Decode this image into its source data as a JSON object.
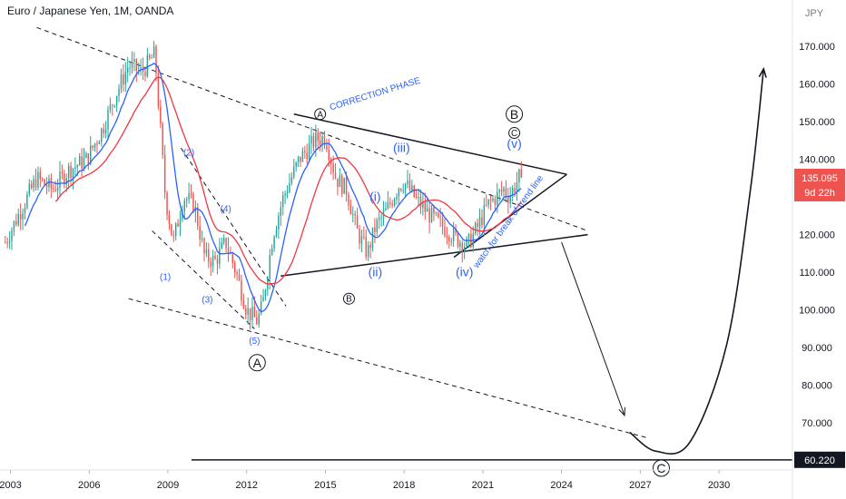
{
  "header": {
    "title": "Euro / Japanese Yen, 1M, OANDA"
  },
  "colors": {
    "up": "#26a69a",
    "down": "#ef5350",
    "ma_fast": "#2962ff",
    "ma_slow": "#f23645",
    "wave_label": "#2962ff",
    "line": "#131722",
    "price_badge": "#ef5350"
  },
  "chart_data": {
    "type": "candlestick",
    "title": "Euro / Japanese Yen, 1M, OANDA",
    "currency": "JPY",
    "ylim": [
      58,
      177
    ],
    "xlim": [
      2002.6,
      2032.8
    ],
    "grid": false,
    "y_ticks": [
      "170.000",
      "160.000",
      "150.000",
      "140.000",
      "130.000",
      "120.000",
      "110.000",
      "100.000",
      "90.000",
      "80.000",
      "70.000"
    ],
    "x_ticks": [
      "2003",
      "2006",
      "2009",
      "2012",
      "2015",
      "2018",
      "2021",
      "2024",
      "2027",
      "2030"
    ],
    "price_anchors": {
      "t": [
        2002.8,
        2003.5,
        2004.0,
        2004.6,
        2005.2,
        2005.9,
        2006.5,
        2007.0,
        2007.5,
        2008.0,
        2008.5,
        2008.9,
        2009.2,
        2009.6,
        2010.0,
        2010.4,
        2010.8,
        2011.2,
        2011.6,
        2012.0,
        2012.4,
        2012.6,
        2013.0,
        2013.4,
        2014.0,
        2014.6,
        2015.0,
        2015.4,
        2015.8,
        2016.2,
        2016.6,
        2016.9,
        2017.3,
        2017.8,
        2018.0,
        2018.5,
        2019.0,
        2019.5,
        2020.0,
        2020.4,
        2020.8,
        2021.2,
        2021.5,
        2021.8,
        2022.0,
        2022.3,
        2022.5
      ],
      "v": [
        118,
        128,
        135,
        132,
        137,
        140,
        148,
        157,
        165,
        163,
        168,
        130,
        118,
        130,
        128,
        114,
        113,
        118,
        110,
        100,
        97,
        101,
        120,
        130,
        140,
        145,
        146,
        135,
        132,
        121,
        115,
        122,
        126,
        133,
        134,
        129,
        125,
        122,
        119,
        117,
        122,
        128,
        130,
        132,
        130,
        134,
        137
      ]
    },
    "moving_averages": [
      {
        "name": "",
        "color": "#2962ff",
        "window_months": 10
      },
      {
        "name": "",
        "color": "#f23645",
        "window_months": 24
      }
    ],
    "price_labels": {
      "last_price": "135.095",
      "countdown": "9d 22h",
      "target": "60.220"
    },
    "drawings": {
      "lines": [
        {
          "name": "upper-dashed-channel",
          "style": "dashed",
          "from": [
            2004.0,
            175
          ],
          "to": [
            2025.0,
            121
          ]
        },
        {
          "name": "lower-dashed-channel",
          "style": "dashed",
          "from": [
            2007.5,
            103
          ],
          "to": [
            2027.3,
            66
          ]
        },
        {
          "name": "triangle-upper-line",
          "style": "solid",
          "from": [
            2013.8,
            152
          ],
          "to": [
            2024.2,
            136
          ]
        },
        {
          "name": "triangle-lower-line",
          "style": "solid",
          "from": [
            2013.3,
            109
          ],
          "to": [
            2025.0,
            120
          ]
        },
        {
          "name": "rising-trend-line",
          "style": "solid",
          "from": [
            2019.9,
            114
          ],
          "to": [
            2024.2,
            136
          ]
        },
        {
          "name": "wedge-upper-dashed",
          "style": "dashed",
          "from": [
            2009.5,
            143
          ],
          "to": [
            2013.5,
            101
          ]
        },
        {
          "name": "wedge-lower-dashed",
          "style": "dashed",
          "from": [
            2008.4,
            121
          ],
          "to": [
            2012.3,
            95
          ]
        },
        {
          "name": "target-horizontal",
          "style": "solid",
          "from": [
            2009.9,
            60.2
          ],
          "to": [
            2032.8,
            60.2
          ]
        }
      ],
      "arrows": [
        {
          "name": "down-arrow",
          "from": [
            2024.0,
            118
          ],
          "to": [
            2026.4,
            72
          ]
        }
      ],
      "curves": [
        {
          "name": "recovery-curve",
          "points": [
            [
              2026.6,
              67.5
            ],
            [
              2027.6,
              62.5
            ],
            [
              2028.9,
              65
            ],
            [
              2030.3,
              91
            ],
            [
              2031.2,
              132
            ],
            [
              2031.7,
              164
            ]
          ]
        }
      ],
      "wave_labels": [
        {
          "text": "(1)",
          "t": 2008.9,
          "v": 108
        },
        {
          "text": "(2)",
          "t": 2009.8,
          "v": 141
        },
        {
          "text": "(3)",
          "t": 2010.5,
          "v": 102
        },
        {
          "text": "(4)",
          "t": 2011.2,
          "v": 126
        },
        {
          "text": "(5)",
          "t": 2012.3,
          "v": 91
        },
        {
          "text": "(i)",
          "t": 2016.9,
          "v": 129
        },
        {
          "text": "(ii)",
          "t": 2016.9,
          "v": 109
        },
        {
          "text": "(iii)",
          "t": 2017.9,
          "v": 142
        },
        {
          "text": "(iv)",
          "t": 2020.3,
          "v": 109
        },
        {
          "text": "(v)",
          "t": 2022.2,
          "v": 143
        }
      ],
      "circle_labels": [
        {
          "text": "A",
          "t": 2012.4,
          "v": 86,
          "size": "large"
        },
        {
          "text": "A",
          "t": 2014.8,
          "v": 152,
          "size": "small"
        },
        {
          "text": "B",
          "t": 2015.9,
          "v": 103,
          "size": "small"
        },
        {
          "text": "B",
          "t": 2022.2,
          "v": 152,
          "size": "large"
        },
        {
          "text": "C",
          "t": 2022.2,
          "v": 147,
          "size": "small"
        },
        {
          "text": "C",
          "t": 2027.8,
          "v": 58,
          "size": "large"
        }
      ],
      "text_labels": [
        {
          "text": "CORRECTION PHASE",
          "t": 2015.2,
          "v": 153,
          "rotate": -17
        },
        {
          "text": "watch for break of trend line",
          "t": 2020.8,
          "v": 111,
          "rotate": -54
        }
      ]
    }
  }
}
